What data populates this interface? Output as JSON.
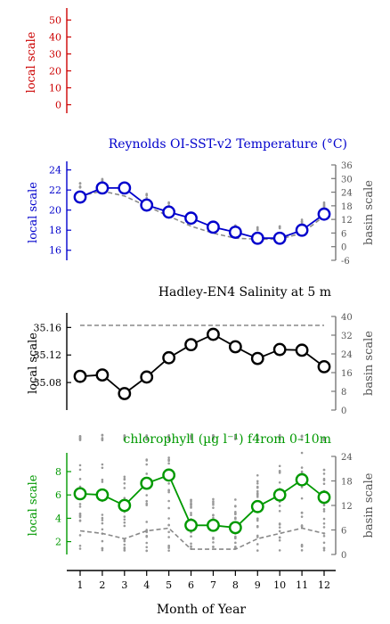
{
  "chart_data": [
    {
      "type": "line",
      "panel": "panel1",
      "title": "",
      "ylabel": "local scale",
      "ylim": [
        -5,
        55
      ],
      "left_ticks": [
        0,
        10,
        20,
        30,
        40,
        50
      ],
      "color": "#cc0000",
      "series": []
    },
    {
      "type": "line",
      "panel": "panel2",
      "title": "Reynolds OI-SST-v2 Temperature (°C)",
      "ylabel": "local scale",
      "ylabel_right": "basin scale",
      "color": "#0000cc",
      "ylim": [
        15,
        24.5
      ],
      "left_ticks": [
        16,
        18,
        20,
        22,
        24
      ],
      "right_ylim": [
        -6,
        36
      ],
      "right_ticks": [
        -6,
        0,
        6,
        12,
        18,
        24,
        30,
        36
      ],
      "x": [
        1,
        2,
        3,
        4,
        5,
        6,
        7,
        8,
        9,
        10,
        11,
        12
      ],
      "series": [
        {
          "role": "local",
          "values": [
            21.3,
            22.2,
            22.2,
            20.5,
            19.8,
            19.2,
            18.3,
            17.8,
            17.2,
            17.2,
            18.0,
            19.6
          ]
        },
        {
          "role": "basin",
          "values": [
            22.5,
            23.0,
            22.5,
            21.5,
            20.5,
            19.5,
            18.8,
            18.3,
            18.2,
            18.2,
            18.8,
            20.5
          ]
        }
      ]
    },
    {
      "type": "line",
      "panel": "panel3",
      "title": "Hadley-EN4 Salinity at 5 m",
      "ylabel": "local scale",
      "ylabel_right": "basin scale",
      "color": "#000000",
      "ylim": [
        35.04,
        35.176
      ],
      "left_ticks": [
        35.08,
        35.12,
        35.16
      ],
      "right_ylim": [
        0,
        40
      ],
      "right_ticks": [
        0,
        8,
        16,
        24,
        32,
        40
      ],
      "x": [
        1,
        2,
        3,
        4,
        5,
        6,
        7,
        8,
        9,
        10,
        11,
        12
      ],
      "series": [
        {
          "role": "local",
          "values": [
            35.089,
            35.091,
            35.064,
            35.088,
            35.116,
            35.135,
            35.15,
            35.132,
            35.115,
            35.128,
            35.127,
            35.103
          ]
        },
        {
          "role": "basin",
          "values": [
            35,
            35,
            35,
            35,
            35,
            35,
            35,
            35,
            35,
            35,
            35,
            35
          ]
        }
      ]
    },
    {
      "type": "line",
      "panel": "panel4",
      "title": "chlorophyll (µg l⁻¹) f4rom 0–10m",
      "ylabel": "local scale",
      "ylabel_right": "basin scale",
      "color": "#009900",
      "ylim": [
        0.9,
        9.3
      ],
      "left_ticks": [
        2,
        4,
        6,
        8
      ],
      "right_ylim": [
        0,
        24
      ],
      "right_ticks": [
        0,
        6,
        12,
        18,
        24
      ],
      "x": [
        1,
        2,
        3,
        4,
        5,
        6,
        7,
        8,
        9,
        10,
        11,
        12
      ],
      "xlabel": "Month of Year",
      "x_ticks": [
        "1",
        "2",
        "3",
        "4",
        "5",
        "6",
        "7",
        "8",
        "9",
        "10",
        "11",
        "12"
      ],
      "series": [
        {
          "role": "local",
          "values": [
            6.1,
            6.0,
            5.1,
            7.0,
            7.7,
            3.4,
            3.4,
            3.2,
            5.0,
            6.0,
            7.3,
            5.8
          ]
        },
        {
          "role": "basin",
          "values": [
            6.5,
            6.0,
            5.0,
            6.5,
            7.0,
            3.0,
            3.0,
            3.0,
            5.0,
            6.0,
            7.0,
            6.0
          ]
        }
      ]
    }
  ]
}
